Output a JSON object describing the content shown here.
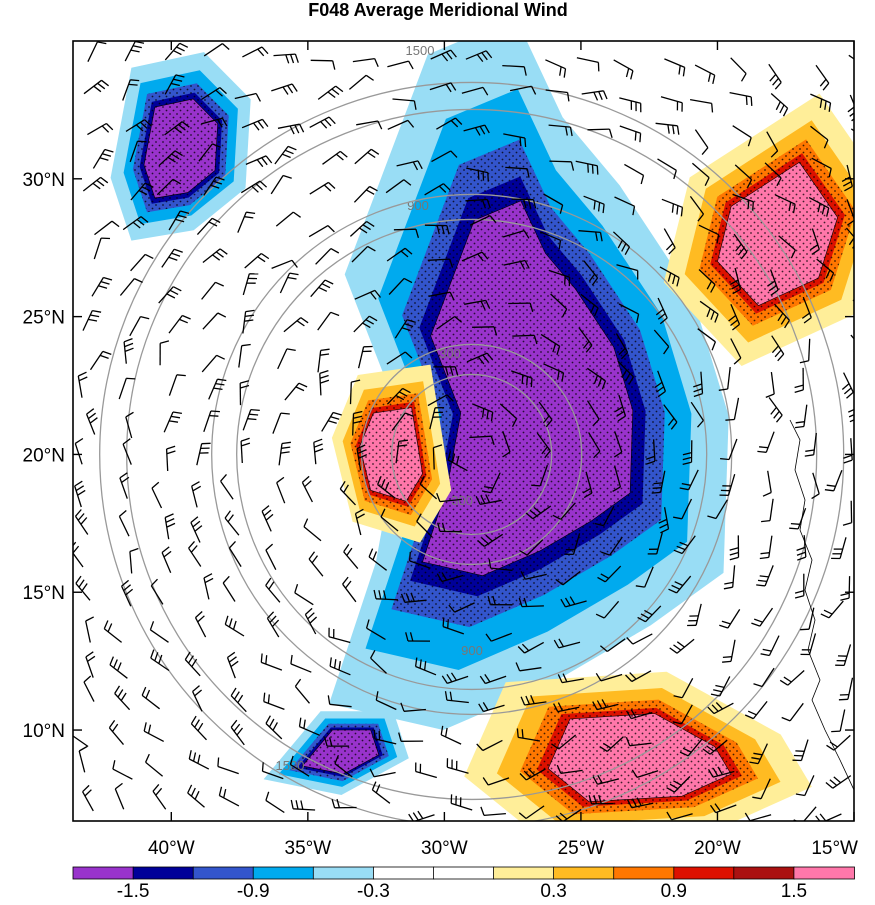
{
  "chart_data": {
    "type": "heatmap",
    "title": "F048 Average Meridional Wind",
    "x_ticks": [
      {
        "value": -40,
        "label": "40°W"
      },
      {
        "value": -35,
        "label": "35°W"
      },
      {
        "value": -30,
        "label": "30°W"
      },
      {
        "value": -25,
        "label": "25°W"
      },
      {
        "value": -20,
        "label": "20°W"
      },
      {
        "value": -15,
        "label": "15°W"
      }
    ],
    "y_ticks": [
      {
        "value": 30,
        "label": "30°N"
      },
      {
        "value": 25,
        "label": "25°N"
      },
      {
        "value": 20,
        "label": "20°N"
      },
      {
        "value": 15,
        "label": "15°N"
      },
      {
        "value": 10,
        "label": "10°N"
      }
    ],
    "xlim": [
      -43.6,
      -15
    ],
    "ylim": [
      6.7,
      35
    ],
    "colorbar": {
      "colors": [
        "#9933cc",
        "#000099",
        "#3355cc",
        "#00aaee",
        "#99ddf5",
        "#ffffff",
        "#ffffff",
        "#ffee99",
        "#ffbb22",
        "#ff7700",
        "#dd1100",
        "#aa1111",
        "#ff77aa"
      ],
      "labels": [
        "-1.5",
        "-0.9",
        "-0.3",
        "0.3",
        "0.9",
        "1.5"
      ]
    },
    "range_rings": {
      "center": [
        -29,
        20
      ],
      "labels": [
        "300",
        "900",
        "1500"
      ]
    },
    "regions": [
      {
        "level": -1.5,
        "points": [
          [
            -28.9,
            28.5
          ],
          [
            -27.2,
            29.2
          ],
          [
            -26.3,
            27.3
          ],
          [
            -25.2,
            26.0
          ],
          [
            -23.8,
            23.9
          ],
          [
            -23.1,
            21.6
          ],
          [
            -23.2,
            18.6
          ],
          [
            -24.6,
            17.6
          ],
          [
            -26.5,
            16.5
          ],
          [
            -28.6,
            15.6
          ],
          [
            -30.8,
            16.1
          ],
          [
            -29.9,
            18.8
          ],
          [
            -29.4,
            21.5
          ],
          [
            -30.5,
            24.3
          ]
        ]
      },
      {
        "level": -1.5,
        "points": [
          [
            -40.6,
            32.6
          ],
          [
            -39.2,
            32.9
          ],
          [
            -38.3,
            32.0
          ],
          [
            -38.4,
            30.3
          ],
          [
            -39.4,
            29.5
          ],
          [
            -40.6,
            29.3
          ],
          [
            -41.0,
            30.5
          ]
        ]
      },
      {
        "level": -1.5,
        "points": [
          [
            -34.1,
            10.0
          ],
          [
            -32.7,
            10.0
          ],
          [
            -32.4,
            9.1
          ],
          [
            -33.7,
            8.4
          ],
          [
            -35.2,
            8.7
          ]
        ]
      },
      {
        "level": 1.5,
        "points": [
          [
            -32.6,
            21.5
          ],
          [
            -31.2,
            21.7
          ],
          [
            -30.8,
            19.3
          ],
          [
            -31.4,
            18.3
          ],
          [
            -32.7,
            18.7
          ],
          [
            -33.1,
            20.3
          ]
        ]
      },
      {
        "level": 1.5,
        "points": [
          [
            -19.5,
            29.0
          ],
          [
            -17.0,
            30.6
          ],
          [
            -15.6,
            28.6
          ],
          [
            -16.3,
            26.4
          ],
          [
            -18.5,
            25.4
          ],
          [
            -20.0,
            27.0
          ]
        ]
      },
      {
        "level": 1.5,
        "points": [
          [
            -25.4,
            10.4
          ],
          [
            -22.3,
            10.6
          ],
          [
            -20.1,
            9.4
          ],
          [
            -19.5,
            8.4
          ],
          [
            -21.3,
            7.6
          ],
          [
            -24.7,
            7.4
          ],
          [
            -26.2,
            8.6
          ]
        ]
      }
    ]
  }
}
